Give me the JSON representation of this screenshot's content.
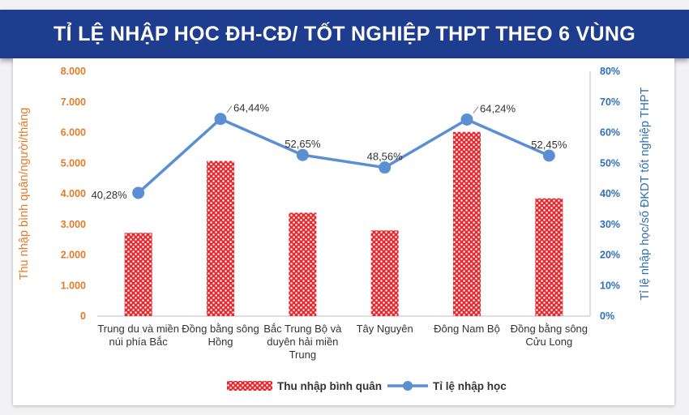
{
  "title": "TỈ LỆ NHẬP HỌC ĐH-CĐ/ TỐT NGHIỆP THPT THEO 6 VÙNG",
  "colors": {
    "banner": "#1f3d8f",
    "bar_fill": "#e8262b",
    "line": "#5b8fd4",
    "left_axis": "#e07b2a",
    "right_axis": "#2f6fb6"
  },
  "chart_data": {
    "type": "bar+line",
    "categories": [
      [
        "Trung du và miền",
        "núi phía Bắc"
      ],
      [
        "Đồng bằng sông",
        "Hồng"
      ],
      [
        "Bắc Trung Bộ và",
        "duyên hải miền",
        "Trung"
      ],
      [
        "Tây Nguyên"
      ],
      [
        "Đông Nam Bộ"
      ],
      [
        "Đồng bằng sông",
        "Cửu Long"
      ]
    ],
    "ylabel_left": "Thu nhập bình quân/người/tháng",
    "ylabel_right": "Tỉ lệ nhập học/số ĐKDT tốt nghiệp THPT",
    "y_left_ticks": [
      "0",
      "1.000",
      "2.000",
      "3.000",
      "4.000",
      "5.000",
      "6.000",
      "7.000",
      "8.000"
    ],
    "y_right_ticks": [
      "0%",
      "10%",
      "20%",
      "30%",
      "40%",
      "50%",
      "60%",
      "70%",
      "80%"
    ],
    "ylim_left": [
      0,
      8000
    ],
    "ylim_right": [
      0,
      80
    ],
    "series": [
      {
        "name": "Thu nhập bình quân",
        "type": "bar",
        "axis": "left",
        "values": [
          2720,
          5070,
          3380,
          2800,
          6020,
          3850
        ]
      },
      {
        "name": "Tỉ lệ nhập học",
        "type": "line",
        "axis": "right",
        "values": [
          40.28,
          64.44,
          52.65,
          48.56,
          64.24,
          52.45
        ],
        "labels": [
          "40,28%",
          "64,44%",
          "52,65%",
          "48,56%",
          "64,24%",
          "52,45%"
        ]
      }
    ],
    "legend_position": "bottom",
    "grid": false
  }
}
